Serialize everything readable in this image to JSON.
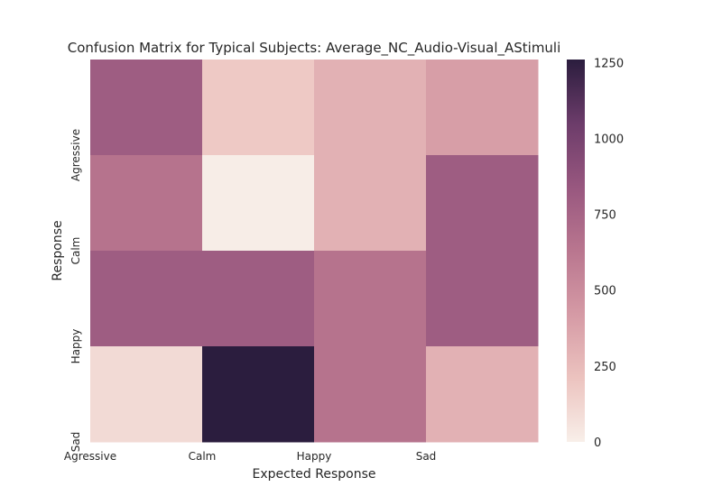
{
  "chart_data": {
    "type": "heatmap",
    "title": "Confusion Matrix for Typical Subjects: Average_NC_Audio-Visual_AStimuli",
    "xlabel": "Expected Response",
    "ylabel": "Response",
    "x_categories": [
      "Agressive",
      "Calm",
      "Happy",
      "Sad"
    ],
    "y_categories": [
      "Agressive",
      "Calm",
      "Happy",
      "Sad"
    ],
    "matrix": [
      [
        800,
        180,
        300,
        400
      ],
      [
        650,
        10,
        300,
        800
      ],
      [
        800,
        800,
        650,
        800
      ],
      [
        100,
        1260,
        650,
        300
      ]
    ],
    "colorbar": {
      "min": 0,
      "max": 1260,
      "ticks": [
        0,
        250,
        500,
        750,
        1000,
        1250
      ],
      "colors": [
        "#f8efe9",
        "#ecc3bf",
        "#d59aa5",
        "#b9768f",
        "#98577f",
        "#6c3c6a",
        "#2b1d3e"
      ]
    },
    "grid": false,
    "legend": "colorbar-right"
  }
}
